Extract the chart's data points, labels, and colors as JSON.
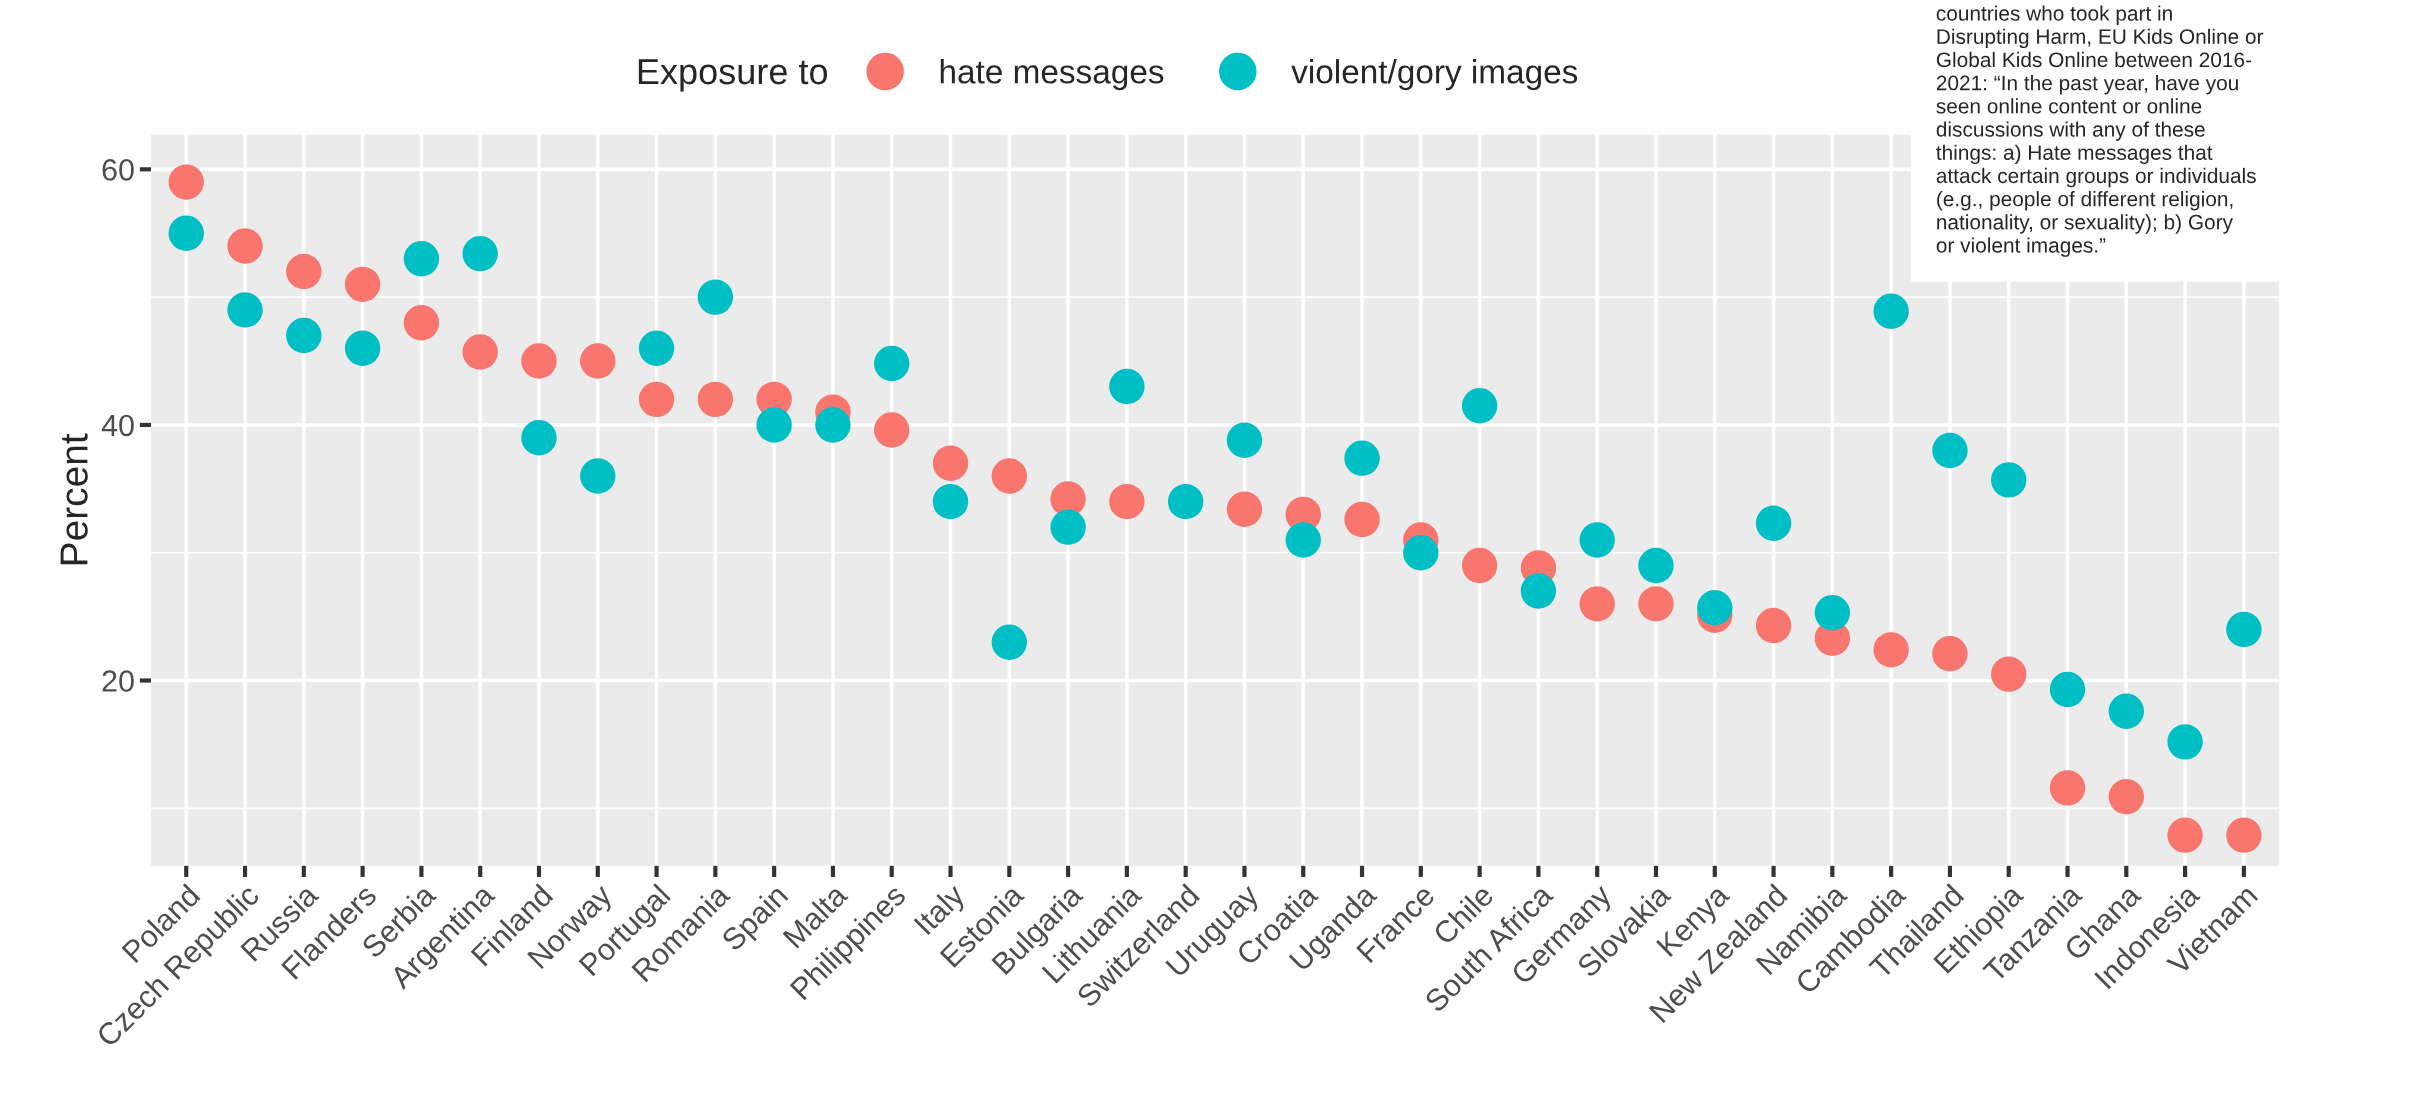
{
  "chart_data": {
    "type": "scatter",
    "ylabel": "Percent",
    "legend_title": "Exposure to",
    "legend": "top",
    "grid": true,
    "marker": "circle",
    "categories": [
      "Poland",
      "Czech Republic",
      "Russia",
      "Flanders",
      "Serbia",
      "Argentina",
      "Finland",
      "Norway",
      "Portugal",
      "Romania",
      "Spain",
      "Malta",
      "Philippines",
      "Italy",
      "Estonia",
      "Bulgaria",
      "Lithuania",
      "Switzerland",
      "Uruguay",
      "Croatia",
      "Uganda",
      "France",
      "Chile",
      "South Africa",
      "Germany",
      "Slovakia",
      "Kenya",
      "New Zealand",
      "Namibia",
      "Cambodia",
      "Thailand",
      "Ethiopia",
      "Tanzania",
      "Ghana",
      "Indonesia",
      "Vietnam"
    ],
    "series": [
      {
        "name": "hate messages",
        "color": "#f8766d",
        "values": [
          59,
          54,
          52,
          51,
          48,
          45.7,
          45,
          45,
          42,
          42,
          42,
          41,
          39.6,
          37,
          36,
          34.2,
          34,
          null,
          33.4,
          33,
          32.6,
          31,
          29,
          28.8,
          26,
          26,
          25.1,
          24.3,
          23.3,
          22.4,
          22.1,
          20.5,
          11.6,
          10.9,
          7.9,
          7.9
        ]
      },
      {
        "name": "violent/gory images",
        "color": "#00bfc4",
        "values": [
          55,
          49,
          47,
          46,
          53,
          53.4,
          39,
          36,
          46,
          50,
          40,
          40,
          44.8,
          34,
          23,
          32,
          43,
          34,
          38.8,
          31,
          37.4,
          30,
          41.5,
          27,
          31,
          29,
          25.7,
          32.3,
          25.3,
          48.9,
          38,
          35.7,
          19.3,
          17.6,
          15.2,
          24
        ]
      }
    ],
    "ylim": [
      5.5,
      62.7
    ],
    "yticks": [
      20,
      40,
      60
    ],
    "annotations": [
      "countries who took part in\nDisrupting Harm, EU Kids Online or\nGlobal Kids Online between 2016-\n2021: “In the past year, have you\nseen online content or online\ndiscussions with any of these\nthings: a) Hate messages that\nattack certain groups or individuals\n(e.g., people of different religion,\nnationality, or sexuality); b) Gory\nor violent images.”"
    ]
  }
}
